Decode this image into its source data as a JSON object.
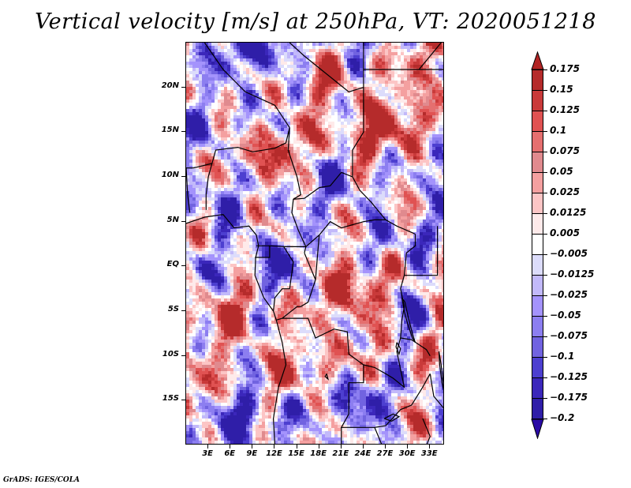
{
  "title": "Vertical velocity [m/s] at 250hPa, VT: 2020051218",
  "footer": "GrADS: IGES/COLA",
  "map": {
    "region": "Central Africa",
    "lon_range": [
      0,
      35
    ],
    "lat_range": [
      -20,
      25
    ],
    "y_ticks": [
      {
        "label": "20N",
        "lat": 20
      },
      {
        "label": "15N",
        "lat": 15
      },
      {
        "label": "10N",
        "lat": 10
      },
      {
        "label": "5N",
        "lat": 5
      },
      {
        "label": "EQ",
        "lat": 0
      },
      {
        "label": "5S",
        "lat": -5
      },
      {
        "label": "10S",
        "lat": -10
      },
      {
        "label": "15S",
        "lat": -15
      }
    ],
    "x_ticks": [
      {
        "label": "3E",
        "lon": 3
      },
      {
        "label": "6E",
        "lon": 6
      },
      {
        "label": "9E",
        "lon": 9
      },
      {
        "label": "12E",
        "lon": 12
      },
      {
        "label": "15E",
        "lon": 15
      },
      {
        "label": "18E",
        "lon": 18
      },
      {
        "label": "21E",
        "lon": 21
      },
      {
        "label": "24E",
        "lon": 24
      },
      {
        "label": "27E",
        "lon": 27
      },
      {
        "label": "30E",
        "lon": 30
      },
      {
        "label": "33E",
        "lon": 33
      }
    ]
  },
  "colorbar": {
    "top_arrow_color": "#b22424",
    "bottom_arrow_color": "#2a0aa6",
    "levels": [
      {
        "label": "0.175",
        "color": "#b52b2b"
      },
      {
        "label": "0.15",
        "color": "#c93a3a"
      },
      {
        "label": "0.125",
        "color": "#e05252"
      },
      {
        "label": "0.1",
        "color": "#e56f6f"
      },
      {
        "label": "0.075",
        "color": "#e08a8e"
      },
      {
        "label": "0.05",
        "color": "#f4a0a0"
      },
      {
        "label": "0.025",
        "color": "#fcc5c5"
      },
      {
        "label": "0.0125",
        "color": "#feeaea"
      },
      {
        "label": "0.005",
        "color": "#ffffff"
      },
      {
        "label": "-0.005",
        "color": "#dcdcfb"
      },
      {
        "label": "-0.0125",
        "color": "#c2b9fa"
      },
      {
        "label": "-0.025",
        "color": "#a493fc"
      },
      {
        "label": "-0.05",
        "color": "#8c7ef0"
      },
      {
        "label": "-0.075",
        "color": "#7163e0"
      },
      {
        "label": "-0.1",
        "color": "#4d3fd0"
      },
      {
        "label": "-0.125",
        "color": "#3b27bb"
      },
      {
        "label": "-0.175",
        "color": "#2f1ea8"
      },
      {
        "label": "-0.2",
        "color": ""
      }
    ]
  }
}
